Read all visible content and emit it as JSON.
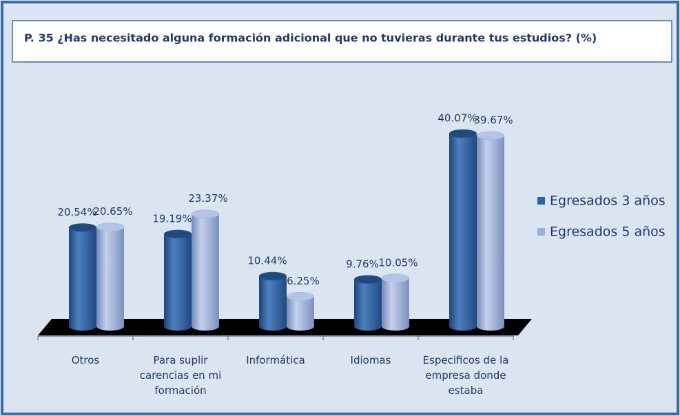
{
  "chart_data": {
    "type": "bar3d",
    "title": "P. 35 ¿Has necesitado alguna formación adicional que no tuvieras durante tus estudios? (%)",
    "categories": [
      "Otros",
      "Para suplir carencias en mi formación",
      "Informática",
      "Idiomas",
      "Especificos de la empresa donde estaba"
    ],
    "series": [
      {
        "name": "Egresados 3 años",
        "color": "#2f62a3",
        "values": [
          20.54,
          19.19,
          10.44,
          9.76,
          40.07
        ],
        "value_labels": [
          "20.54%",
          "19.19%",
          "10.44%",
          "9.76%",
          "40.07%"
        ]
      },
      {
        "name": "Egresados 5 años",
        "color": "#9aaed8",
        "values": [
          20.65,
          23.37,
          6.25,
          10.05,
          39.67
        ],
        "value_labels": [
          "20.65%",
          "23.37%",
          "6.25%",
          "10.05%",
          "39.67%"
        ]
      }
    ],
    "legend": "right"
  }
}
